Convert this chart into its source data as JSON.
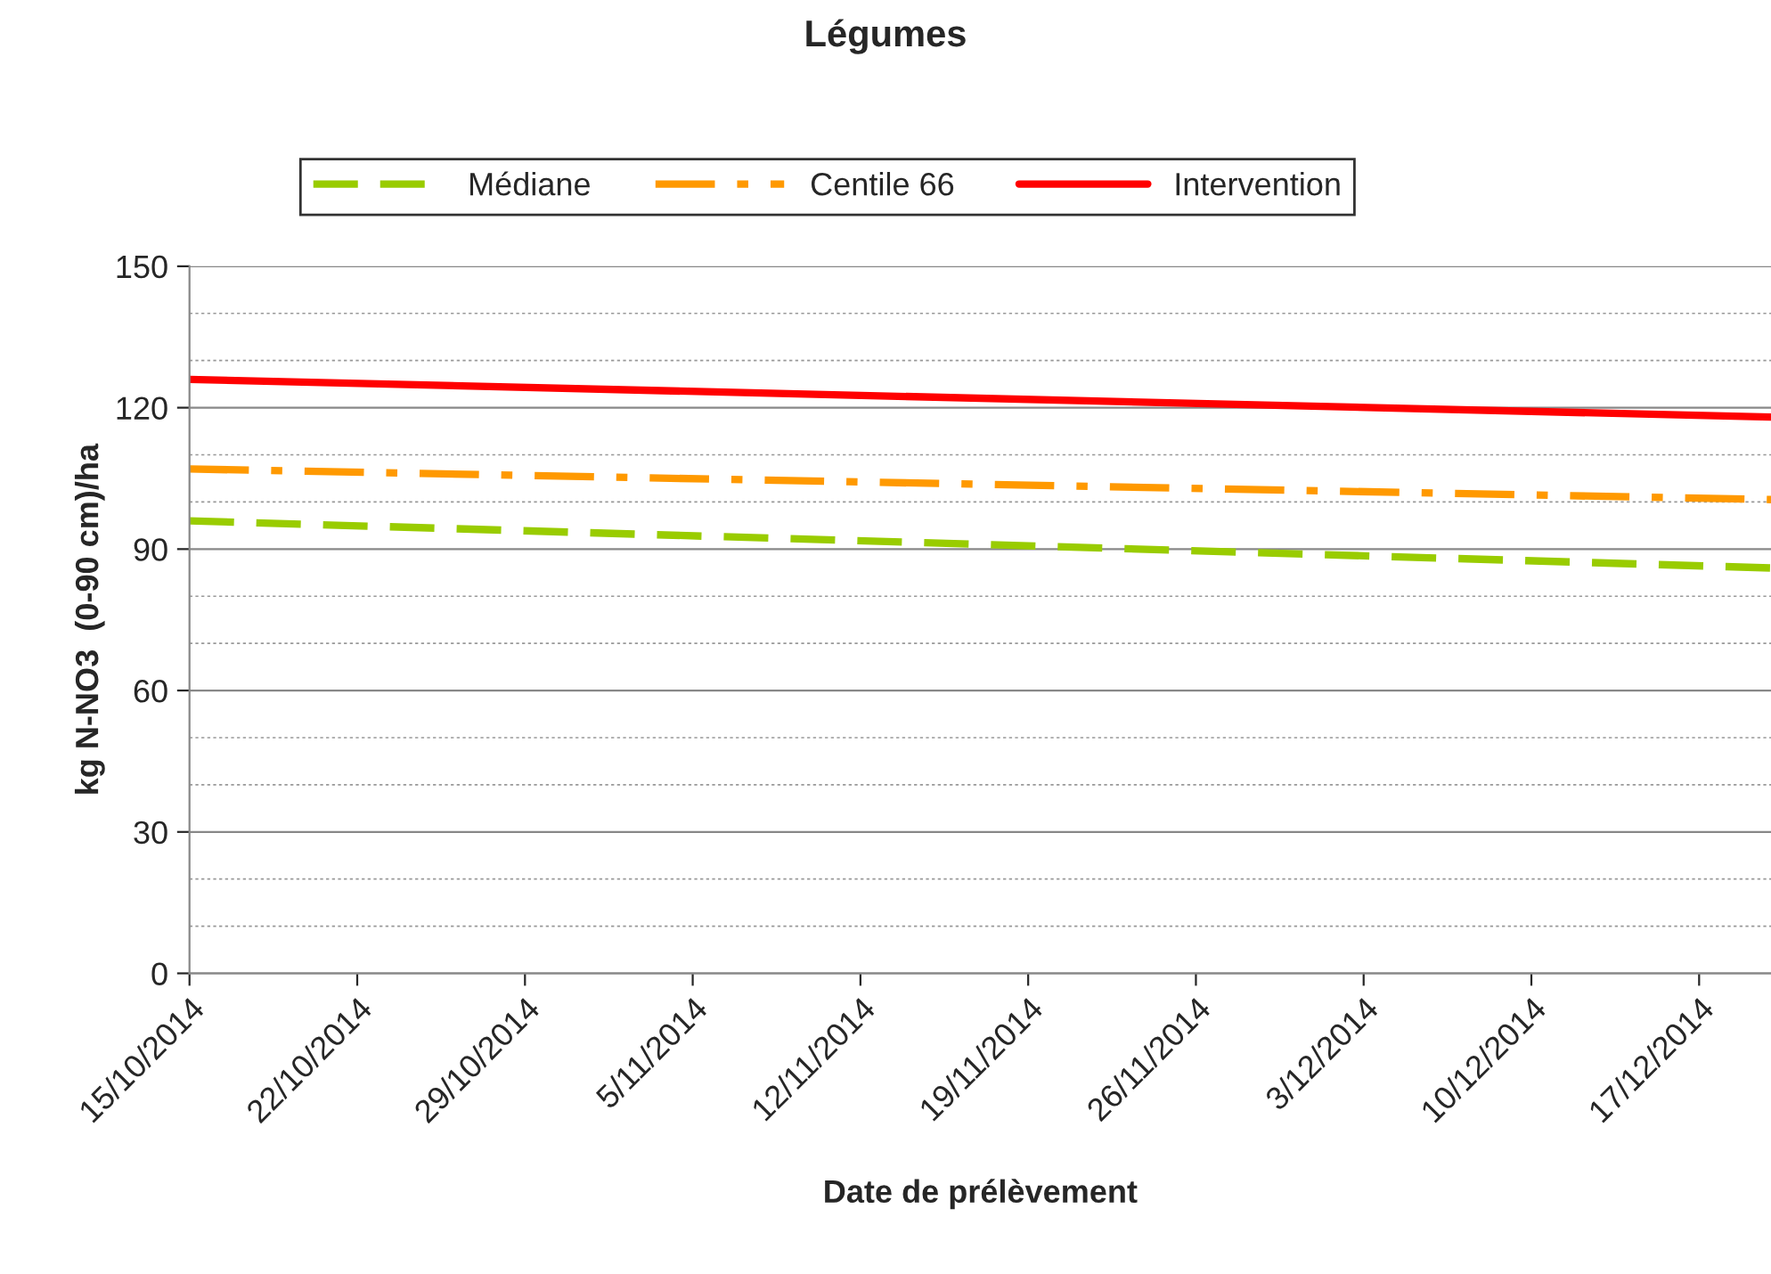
{
  "chart_data": {
    "type": "line",
    "title": "Légumes",
    "xlabel": "Date de prélèvement",
    "ylabel": "kg N-NO3  (0-90 cm)/ha",
    "x": [
      "2014-10-15",
      "2014-12-20"
    ],
    "series": [
      {
        "name": "Médiane",
        "color": "#99cc00",
        "line_style": "dashed",
        "values": [
          96,
          86
        ]
      },
      {
        "name": "Centile 66",
        "color": "#ff9900",
        "line_style": "dashdot",
        "values": [
          107,
          100.5
        ]
      },
      {
        "name": "Intervention",
        "color": "#ff0000",
        "line_style": "solid",
        "values": [
          126,
          118
        ]
      }
    ],
    "xlim": [
      "2014-10-15",
      "2014-12-20"
    ],
    "xticks": [
      {
        "value": "2014-10-15",
        "label": "15/10/2014"
      },
      {
        "value": "2014-10-22",
        "label": "22/10/2014"
      },
      {
        "value": "2014-10-29",
        "label": "29/10/2014"
      },
      {
        "value": "2014-11-05",
        "label": "5/11/2014"
      },
      {
        "value": "2014-11-12",
        "label": "12/11/2014"
      },
      {
        "value": "2014-11-19",
        "label": "19/11/2014"
      },
      {
        "value": "2014-11-26",
        "label": "26/11/2014"
      },
      {
        "value": "2014-12-03",
        "label": "3/12/2014"
      },
      {
        "value": "2014-12-10",
        "label": "10/12/2014"
      },
      {
        "value": "2014-12-17",
        "label": "17/12/2014"
      }
    ],
    "ylim": [
      0,
      150
    ],
    "yticks": [
      0,
      {
        "value": 10,
        "label": null
      },
      {
        "value": 20,
        "label": null
      },
      30,
      {
        "value": 40,
        "label": null
      },
      {
        "value": 50,
        "label": null
      },
      60,
      {
        "value": 70,
        "label": null
      },
      {
        "value": 80,
        "label": null
      },
      90,
      {
        "value": 100,
        "label": null
      },
      {
        "value": 110,
        "label": null
      },
      120,
      {
        "value": 130,
        "label": null
      },
      {
        "value": 140,
        "label": null
      },
      150
    ],
    "grid": "y",
    "legend": "top"
  }
}
